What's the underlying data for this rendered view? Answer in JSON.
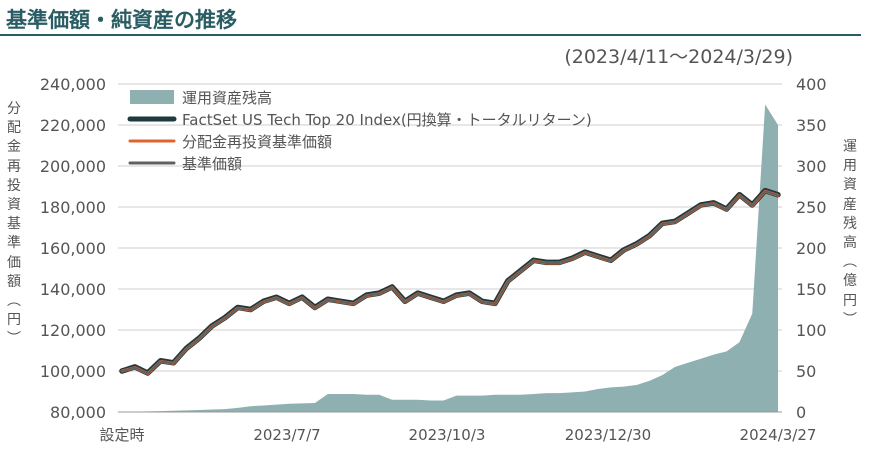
{
  "title": "基準価額・純資産の推移",
  "period": "(2023/4/11～2024/3/29)",
  "left_axis_label": [
    "分",
    "配",
    "金",
    "再",
    "投",
    "資",
    "基",
    "準",
    "価",
    "額",
    "︵",
    "円",
    "︶"
  ],
  "right_axis_label": [
    "運",
    "用",
    "資",
    "産",
    "残",
    "高",
    "︵",
    "億",
    "円",
    "︶"
  ],
  "colors": {
    "aum": "#8fb0b1",
    "index": "#1f3a3d",
    "reinvested": "#e0642f",
    "nav": "#606060",
    "grid": "#cfcfcf",
    "title": "#2a5d63"
  },
  "chart_data": {
    "type": "line+area",
    "x_tick_labels": [
      "設定時",
      "2023/7/7",
      "2023/10/3",
      "2023/12/30",
      "2024/3/27"
    ],
    "left_axis": {
      "ylim": [
        80000,
        240000
      ],
      "ticks": [
        "80,000",
        "100,000",
        "120,000",
        "140,000",
        "160,000",
        "180,000",
        "200,000",
        "220,000",
        "240,000"
      ]
    },
    "right_axis": {
      "ylim": [
        0,
        400
      ],
      "ticks": [
        "0",
        "50",
        "100",
        "150",
        "200",
        "250",
        "300",
        "350",
        "400"
      ]
    },
    "legend": {
      "placement": "top-left",
      "entries": [
        "運用資産残高",
        "FactSet US Tech Top 20 Index(円換算・トータルリターン)",
        "分配金再投資基準価額",
        "基準価額"
      ]
    },
    "grid": "horizontal",
    "dates": [
      "2023/4/11",
      "2023/4/18",
      "2023/4/25",
      "2023/5/2",
      "2023/5/9",
      "2023/5/16",
      "2023/5/23",
      "2023/5/30",
      "2023/6/6",
      "2023/6/13",
      "2023/6/20",
      "2023/6/27",
      "2023/7/4",
      "2023/7/11",
      "2023/7/18",
      "2023/7/25",
      "2023/8/1",
      "2023/8/8",
      "2023/8/15",
      "2023/8/22",
      "2023/8/29",
      "2023/9/5",
      "2023/9/12",
      "2023/9/19",
      "2023/9/26",
      "2023/10/3",
      "2023/10/10",
      "2023/10/17",
      "2023/10/24",
      "2023/10/31",
      "2023/11/7",
      "2023/11/14",
      "2023/11/21",
      "2023/11/28",
      "2023/12/5",
      "2023/12/12",
      "2023/12/19",
      "2023/12/26",
      "2024/1/2",
      "2024/1/9",
      "2024/1/16",
      "2024/1/23",
      "2024/1/30",
      "2024/2/6",
      "2024/2/13",
      "2024/2/20",
      "2024/2/27",
      "2024/3/5",
      "2024/3/12",
      "2024/3/19",
      "2024/3/26",
      "2024/3/29"
    ],
    "series": [
      {
        "name": "運用資産残高",
        "axis": "right",
        "style": "area",
        "values": [
          0.3,
          0.5,
          0.7,
          1,
          1.5,
          2,
          2.5,
          3,
          3.5,
          5,
          7,
          8,
          9,
          10,
          10.5,
          11,
          22,
          22,
          22,
          21,
          21,
          15,
          15,
          15,
          14,
          14,
          20,
          20,
          20,
          21,
          21,
          21,
          22,
          23,
          23,
          24,
          25,
          28,
          30,
          31,
          33,
          38,
          45,
          55,
          60,
          65,
          70,
          74,
          85,
          120,
          375,
          350
        ]
      },
      {
        "name": "FactSet US Tech Top 20 Index(円換算・トータルリターン)",
        "axis": "left",
        "style": "line",
        "values": [
          100000,
          102000,
          99000,
          105000,
          104000,
          111000,
          116000,
          122000,
          126000,
          131000,
          130000,
          134000,
          136000,
          133000,
          136000,
          131000,
          135000,
          134000,
          133000,
          137000,
          138000,
          141000,
          134000,
          138000,
          136000,
          134000,
          137000,
          138000,
          134000,
          133000,
          144000,
          149000,
          154000,
          153000,
          153000,
          155000,
          158000,
          156000,
          154000,
          159000,
          162000,
          166000,
          172000,
          173000,
          177000,
          181000,
          182000,
          179000,
          186000,
          181000,
          188000,
          186000
        ]
      },
      {
        "name": "分配金再投資基準価額",
        "axis": "left",
        "style": "line",
        "values": [
          100000,
          101700,
          98700,
          104700,
          103700,
          110700,
          115700,
          121700,
          125700,
          130700,
          129700,
          133700,
          135700,
          132700,
          135700,
          130700,
          134700,
          133700,
          132700,
          136700,
          137700,
          140700,
          133700,
          137700,
          135700,
          133700,
          136700,
          137700,
          133700,
          132700,
          143700,
          148700,
          153700,
          152700,
          152700,
          154700,
          157700,
          155700,
          153700,
          158700,
          161700,
          165700,
          171700,
          172700,
          176700,
          180700,
          181700,
          178700,
          185700,
          180700,
          187700,
          185700
        ]
      },
      {
        "name": "基準価額",
        "axis": "left",
        "style": "line",
        "values": [
          100000,
          101700,
          98700,
          104700,
          103700,
          110700,
          115700,
          121700,
          125700,
          130700,
          129700,
          133700,
          135700,
          132700,
          135700,
          130700,
          134700,
          133700,
          132700,
          136700,
          137700,
          140700,
          133700,
          137700,
          135700,
          133700,
          136700,
          137700,
          133700,
          132700,
          143700,
          148700,
          153700,
          152700,
          152700,
          154700,
          157700,
          155700,
          153700,
          158700,
          161700,
          165700,
          171700,
          172700,
          176700,
          180700,
          181700,
          178700,
          185700,
          180700,
          187700,
          185700
        ]
      }
    ]
  }
}
